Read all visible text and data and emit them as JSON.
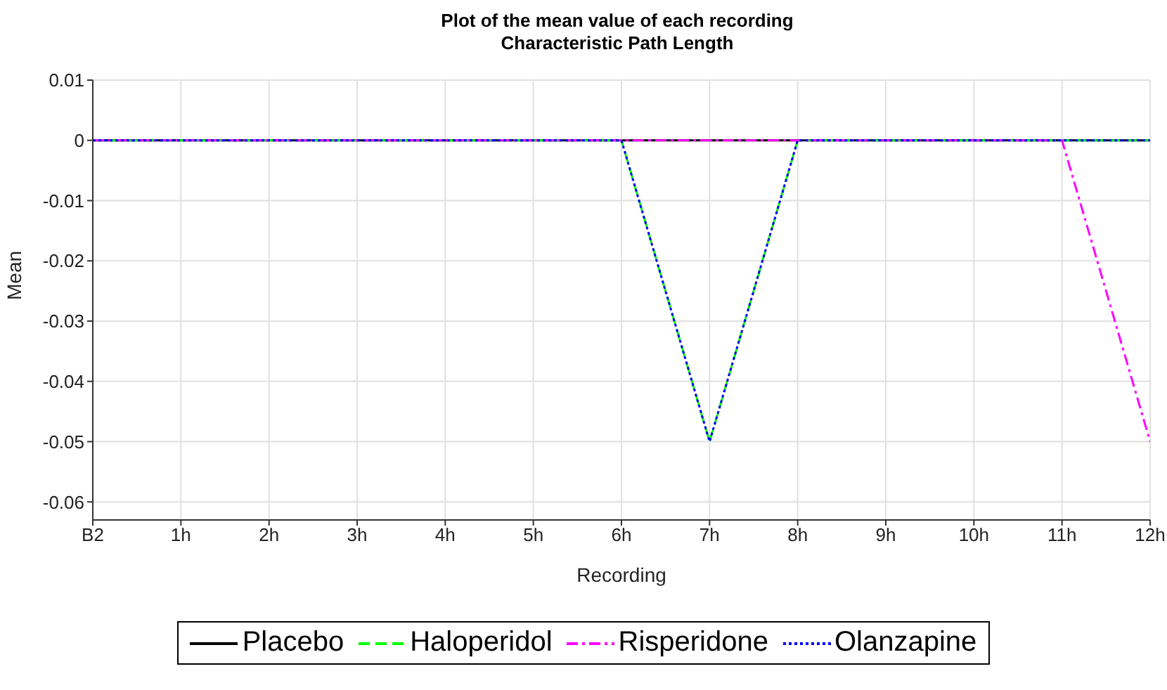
{
  "chart_data": {
    "type": "line",
    "title": "Plot of the mean value of each recording",
    "subtitle": "Characteristic Path Length",
    "xlabel": "Recording",
    "ylabel": "Mean",
    "categories": [
      "B2",
      "1h",
      "2h",
      "3h",
      "4h",
      "5h",
      "6h",
      "7h",
      "8h",
      "9h",
      "10h",
      "11h",
      "12h"
    ],
    "series": [
      {
        "name": "Placebo",
        "color": "#000000",
        "line_style": "solid",
        "values": [
          0,
          0,
          0,
          0,
          0,
          0,
          0,
          0,
          0,
          0,
          0,
          0,
          0
        ]
      },
      {
        "name": "Haloperidol",
        "color": "#00ff00",
        "line_style": "dashed",
        "values": [
          0,
          0,
          0,
          0,
          0,
          0,
          0,
          -0.05,
          0,
          0,
          0,
          0,
          0
        ]
      },
      {
        "name": "Risperidone",
        "color": "#ff00ff",
        "line_style": "dashdot",
        "values": [
          0,
          0,
          0,
          0,
          0,
          0,
          0,
          0,
          0,
          0,
          0,
          0,
          -0.05
        ]
      },
      {
        "name": "Olanzapine",
        "color": "#0000ff",
        "line_style": "dotted",
        "values": [
          0,
          0,
          0,
          0,
          0,
          0,
          0,
          -0.05,
          0,
          0,
          0,
          0,
          0
        ]
      }
    ],
    "ylim": [
      -0.063,
      0.01
    ],
    "yticks": [
      -0.06,
      -0.05,
      -0.04,
      -0.03,
      -0.02,
      -0.01,
      0,
      0.01
    ],
    "grid": true,
    "legend": "bottom",
    "marker": "none"
  }
}
